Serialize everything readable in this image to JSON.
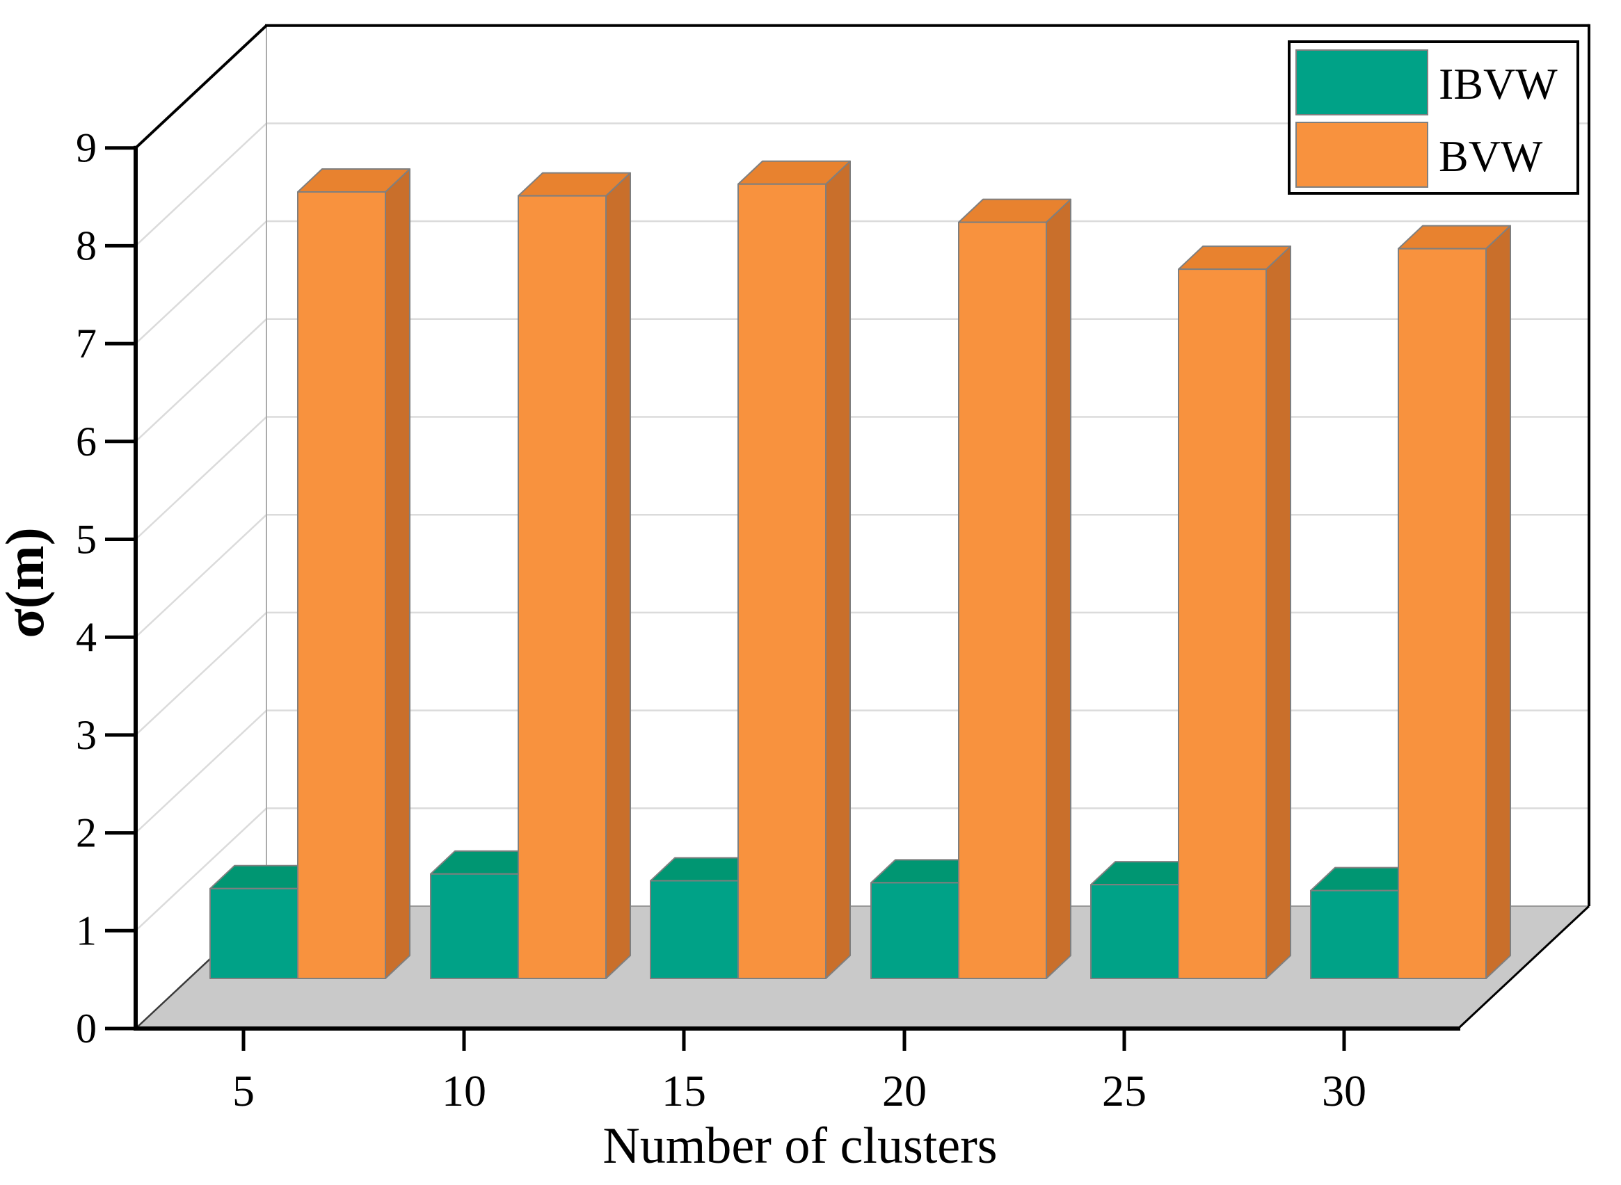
{
  "chart_data": {
    "type": "bar",
    "projection": "3d",
    "title": "",
    "xlabel": "Number of clusters",
    "ylabel": "σ(m)",
    "categories": [
      5,
      10,
      15,
      20,
      25,
      30
    ],
    "series": [
      {
        "name": "IBVW",
        "color": "#00A287",
        "top_color": "#009672",
        "side_color": "#007C5D",
        "values": [
          1.43,
          1.58,
          1.51,
          1.49,
          1.47,
          1.41
        ]
      },
      {
        "name": "BVW",
        "color": "#F8923E",
        "top_color": "#E8822F",
        "side_color": "#C96F2B",
        "values": [
          8.55,
          8.51,
          8.63,
          8.24,
          7.76,
          7.97
        ]
      }
    ],
    "ylim": [
      0,
      9
    ],
    "yticks": [
      "0",
      "1",
      "2",
      "3",
      "4",
      "5",
      "6",
      "7",
      "8",
      "9"
    ],
    "xticks": [
      "5",
      "10",
      "15",
      "20",
      "25",
      "30"
    ],
    "grid": true,
    "legend_position": "top-right"
  },
  "colors": {
    "background": "#FFFFFF",
    "floor": "#C9C9C9",
    "grid_line": "#DBDBDB",
    "wall_back_edge": "#ABABAB",
    "floor_back_edge": "#989898",
    "floor_left_edge": "#3A3A3A",
    "bar_outline": "#7F7F7F",
    "frame": "#000000",
    "legend_border": "#000000",
    "legend_background": "#FFFFFF"
  }
}
